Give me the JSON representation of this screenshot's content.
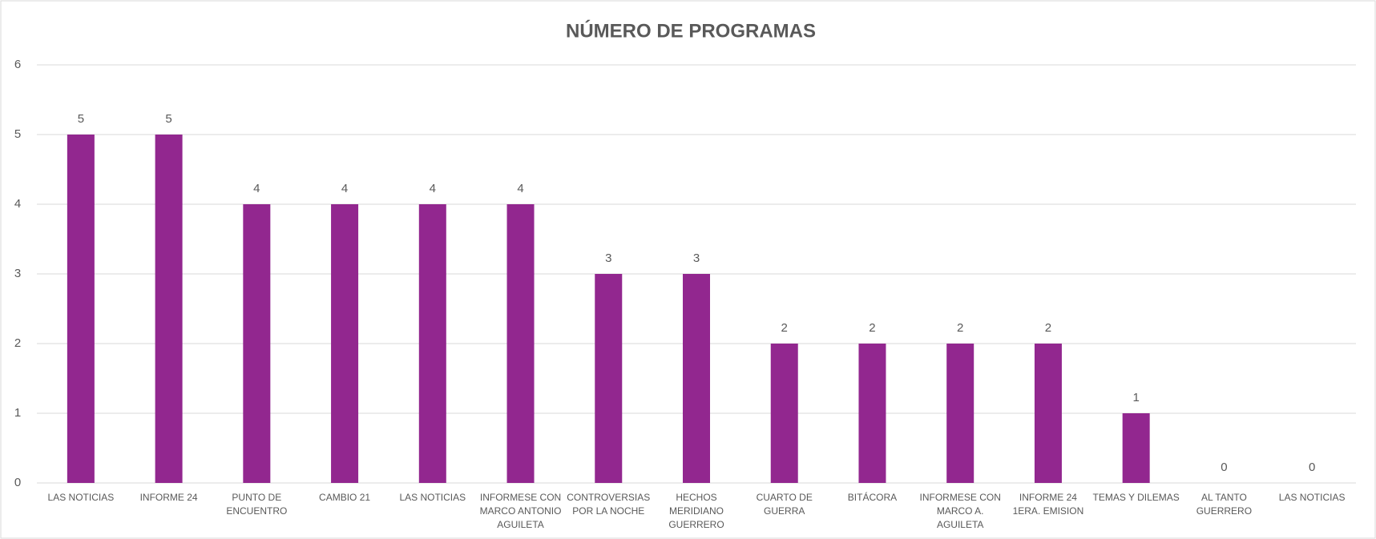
{
  "chart_data": {
    "type": "bar",
    "title": "NÚMERO DE PROGRAMAS",
    "categories": [
      "LAS NOTICIAS",
      "INFORME 24",
      "PUNTO DE ENCUENTRO",
      "CAMBIO 21",
      "LAS NOTICIAS",
      "INFORMESE CON MARCO ANTONIO AGUILETA",
      "CONTROVERSIAS POR LA NOCHE",
      "HECHOS MERIDIANO GUERRERO",
      "CUARTO DE GUERRA",
      "BITÁCORA",
      "INFORMESE CON MARCO A. AGUILETA",
      "INFORME 24 1ERA. EMISION",
      "TEMAS Y DILEMAS",
      "AL TANTO GUERRERO",
      "LAS NOTICIAS"
    ],
    "values": [
      5,
      5,
      4,
      4,
      4,
      4,
      3,
      3,
      2,
      2,
      2,
      2,
      1,
      0,
      0
    ],
    "color": "#92278f",
    "ylim": [
      0,
      6
    ],
    "yticks": [
      0,
      1,
      2,
      3,
      4,
      5,
      6
    ],
    "grid": true
  }
}
